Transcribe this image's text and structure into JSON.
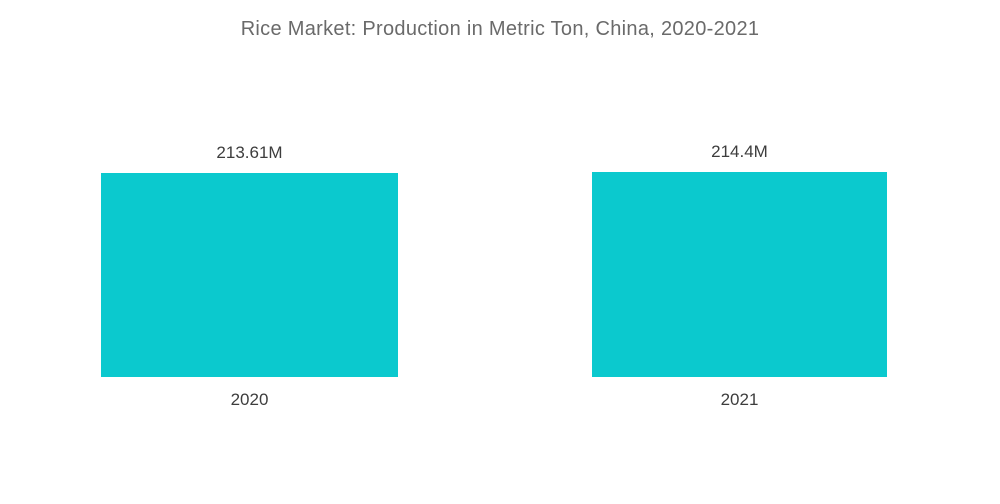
{
  "title": "Rice Market: Production in Metric Ton, China, 2020-2021",
  "colors": {
    "bar": "#0bc9ce",
    "title_text": "#6a6a6a",
    "label_text": "#3d3d3d",
    "background": "#ffffff"
  },
  "chart_data": {
    "type": "bar",
    "title": "Rice Market: Production in Metric Ton, China, 2020-2021",
    "categories": [
      "2020",
      "2021"
    ],
    "values": [
      213.61,
      214.4
    ],
    "value_labels": [
      "213.61M",
      "214.4M"
    ],
    "xlabel": "",
    "ylabel": "",
    "ylim": [
      0,
      214.4
    ],
    "grid": false,
    "legend": false,
    "bar_color": "#0bc9ce"
  },
  "bars": [
    {
      "category": "2020",
      "value": 213.61,
      "label": "213.61M"
    },
    {
      "category": "2021",
      "value": 214.4,
      "label": "214.4M"
    }
  ]
}
